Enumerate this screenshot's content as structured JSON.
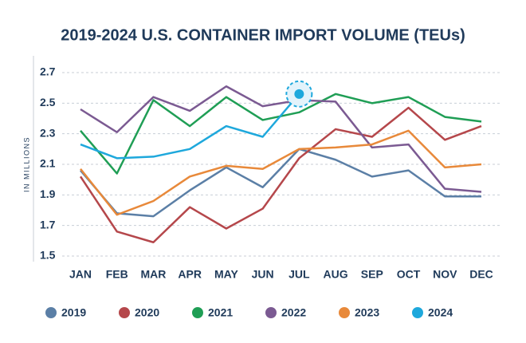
{
  "chart_data": {
    "type": "line",
    "title": "2019-2024 U.S. CONTAINER IMPORT VOLUME (TEUs)",
    "y_label": "IN MILLIONS",
    "categories": [
      "JAN",
      "FEB",
      "MAR",
      "APR",
      "MAY",
      "JUN",
      "JUL",
      "AUG",
      "SEP",
      "OCT",
      "NOV",
      "DEC"
    ],
    "series": [
      {
        "name": "2019",
        "color": "#5b7fa6",
        "values": [
          2.06,
          1.78,
          1.76,
          1.93,
          2.08,
          1.95,
          2.2,
          2.13,
          2.02,
          2.06,
          1.89,
          1.89
        ]
      },
      {
        "name": "2020",
        "color": "#b5474b",
        "values": [
          2.02,
          1.66,
          1.59,
          1.82,
          1.68,
          1.81,
          2.14,
          2.33,
          2.28,
          2.47,
          2.26,
          2.35
        ]
      },
      {
        "name": "2021",
        "color": "#1f9e55",
        "values": [
          2.32,
          2.04,
          2.52,
          2.35,
          2.54,
          2.39,
          2.44,
          2.56,
          2.5,
          2.54,
          2.41,
          2.38
        ]
      },
      {
        "name": "2022",
        "color": "#7b5a92",
        "values": [
          2.46,
          2.31,
          2.54,
          2.45,
          2.61,
          2.48,
          2.52,
          2.51,
          2.21,
          2.23,
          1.94,
          1.92
        ]
      },
      {
        "name": "2023",
        "color": "#e8893a",
        "values": [
          2.07,
          1.77,
          1.86,
          2.02,
          2.09,
          2.07,
          2.2,
          2.21,
          2.23,
          2.32,
          2.08,
          2.1
        ]
      },
      {
        "name": "2024",
        "color": "#1ea8dc",
        "values": [
          2.23,
          2.14,
          2.15,
          2.2,
          2.35,
          2.28,
          2.56,
          null,
          null,
          null,
          null,
          null
        ]
      }
    ],
    "ylim": [
      1.5,
      2.7
    ],
    "yticks": [
      1.5,
      1.7,
      1.9,
      2.1,
      2.3,
      2.5,
      2.7
    ],
    "grid": true,
    "legend": "bottom"
  }
}
